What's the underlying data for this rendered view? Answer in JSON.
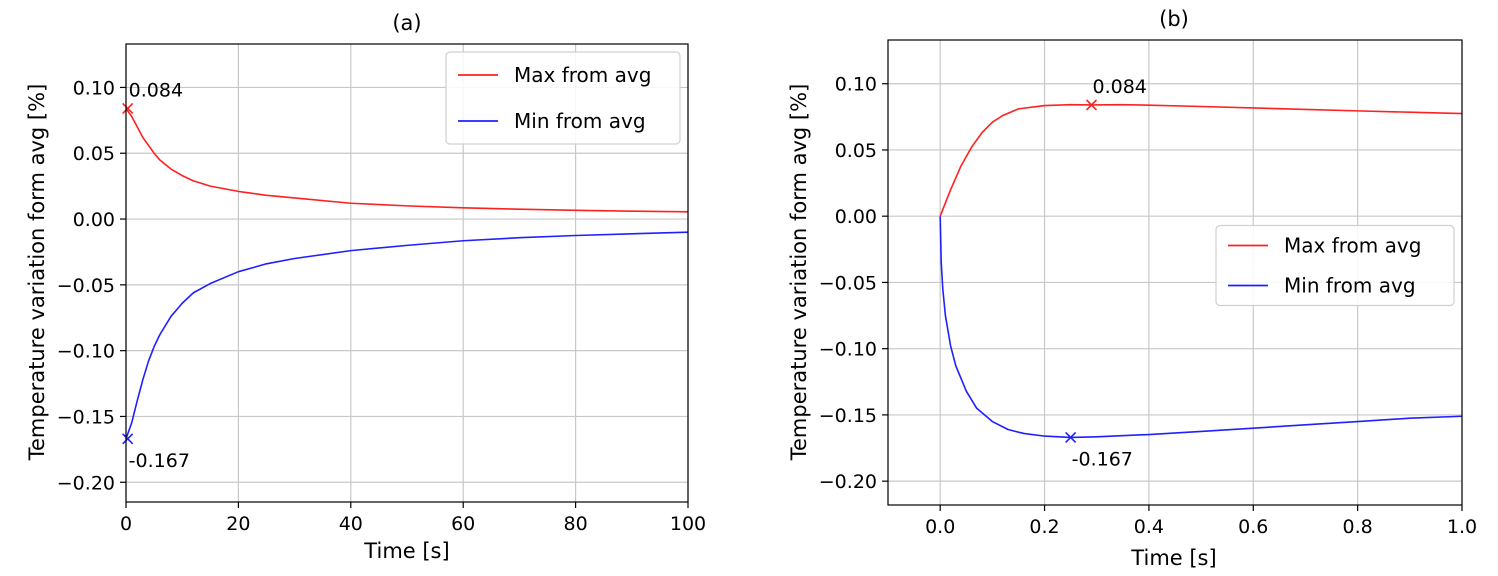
{
  "chart_data": [
    {
      "id": "a",
      "type": "line",
      "title": "(a)",
      "xlabel": "Time [s]",
      "ylabel": "Temperature variation form avg [%]",
      "xlim": [
        0,
        100
      ],
      "ylim": [
        -0.215,
        0.133
      ],
      "xticks": [
        0,
        20,
        40,
        60,
        80,
        100
      ],
      "xtick_labels": [
        "0",
        "20",
        "40",
        "60",
        "80",
        "100"
      ],
      "yticks": [
        0.1,
        0.05,
        0.0,
        -0.05,
        -0.1,
        -0.15,
        -0.2
      ],
      "ytick_labels": [
        "0.10",
        "0.05",
        "0.00",
        "−0.05",
        "−0.10",
        "−0.15",
        "−0.20"
      ],
      "grid": true,
      "legend_position": "top-right",
      "series": [
        {
          "name": "Max from avg",
          "color": "#ff2020",
          "x": [
            0,
            1,
            2,
            3,
            4,
            5,
            6,
            8,
            10,
            12,
            15,
            20,
            25,
            30,
            40,
            50,
            60,
            70,
            80,
            90,
            100
          ],
          "y": [
            0.084,
            0.078,
            0.07,
            0.062,
            0.056,
            0.05,
            0.045,
            0.038,
            0.033,
            0.029,
            0.025,
            0.021,
            0.018,
            0.016,
            0.012,
            0.01,
            0.0085,
            0.0075,
            0.0066,
            0.006,
            0.0055
          ]
        },
        {
          "name": "Min from avg",
          "color": "#2020ff",
          "x": [
            0,
            1,
            2,
            3,
            4,
            5,
            6,
            8,
            10,
            12,
            15,
            20,
            25,
            30,
            40,
            50,
            60,
            70,
            80,
            90,
            100
          ],
          "y": [
            -0.167,
            -0.155,
            -0.138,
            -0.122,
            -0.108,
            -0.097,
            -0.088,
            -0.074,
            -0.064,
            -0.056,
            -0.049,
            -0.04,
            -0.034,
            -0.03,
            -0.024,
            -0.02,
            -0.0165,
            -0.0142,
            -0.0125,
            -0.0112,
            -0.01
          ]
        }
      ],
      "markers": [
        {
          "series": "Max from avg",
          "x": 0.3,
          "y": 0.084,
          "label": "0.084",
          "color": "#ff2020",
          "label_side": "above-right"
        },
        {
          "series": "Min from avg",
          "x": 0.3,
          "y": -0.167,
          "label": "-0.167",
          "color": "#2020ff",
          "label_side": "below-right"
        }
      ]
    },
    {
      "id": "b",
      "type": "line",
      "title": "(b)",
      "xlabel": "Time [s]",
      "ylabel": "Temperature variation form avg [%]",
      "xlim": [
        -0.1,
        1.0
      ],
      "ylim": [
        -0.218,
        0.133
      ],
      "xticks": [
        0.0,
        0.2,
        0.4,
        0.6,
        0.8,
        1.0
      ],
      "xtick_labels": [
        "0.0",
        "0.2",
        "0.4",
        "0.6",
        "0.8",
        "1.0"
      ],
      "yticks": [
        0.1,
        0.05,
        0.0,
        -0.05,
        -0.1,
        -0.15,
        -0.2
      ],
      "ytick_labels": [
        "0.10",
        "0.05",
        "0.00",
        "−0.05",
        "−0.10",
        "−0.15",
        "−0.20"
      ],
      "grid": true,
      "legend_position": "center-right",
      "series": [
        {
          "name": "Max from avg",
          "color": "#ff2020",
          "x": [
            0,
            0.01,
            0.02,
            0.04,
            0.06,
            0.08,
            0.1,
            0.12,
            0.15,
            0.2,
            0.25,
            0.29,
            0.35,
            0.4,
            0.5,
            0.6,
            0.7,
            0.8,
            0.9,
            1.0
          ],
          "y": [
            0,
            0.01,
            0.02,
            0.038,
            0.052,
            0.063,
            0.071,
            0.076,
            0.081,
            0.0835,
            0.0842,
            0.084,
            0.0842,
            0.0838,
            0.0828,
            0.0817,
            0.0806,
            0.0795,
            0.0785,
            0.0775
          ]
        },
        {
          "name": "Min from avg",
          "color": "#2020ff",
          "x": [
            0,
            0.002,
            0.005,
            0.01,
            0.02,
            0.03,
            0.05,
            0.07,
            0.1,
            0.13,
            0.16,
            0.2,
            0.25,
            0.3,
            0.4,
            0.5,
            0.6,
            0.7,
            0.8,
            0.9,
            1.0
          ],
          "y": [
            0,
            -0.035,
            -0.055,
            -0.075,
            -0.098,
            -0.113,
            -0.132,
            -0.145,
            -0.155,
            -0.161,
            -0.164,
            -0.166,
            -0.167,
            -0.1665,
            -0.1648,
            -0.1625,
            -0.16,
            -0.1575,
            -0.155,
            -0.1525,
            -0.151
          ]
        }
      ],
      "markers": [
        {
          "series": "Max from avg",
          "x": 0.29,
          "y": 0.084,
          "label": "0.084",
          "color": "#ff2020",
          "label_side": "above-right"
        },
        {
          "series": "Min from avg",
          "x": 0.25,
          "y": -0.167,
          "label": "-0.167",
          "color": "#2020ff",
          "label_side": "below-right"
        }
      ]
    }
  ]
}
